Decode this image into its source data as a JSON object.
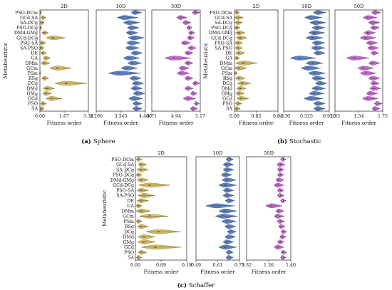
{
  "chart_data": [
    {
      "type": "violin",
      "caption_letter": "(a)",
      "caption_name": "Sphere",
      "ylabel": "Metaheuristic",
      "categories": [
        "PSO-DCm",
        "GCd-SA",
        "SA-DCg",
        "PSO-DCg",
        "DMd-GMg",
        "GCd-DCg",
        "PSO-SA",
        "SA-PSO",
        "DE",
        "GA",
        "DMm",
        "GCm",
        "PSm",
        "RSg",
        "DCg",
        "DMd",
        "GMg",
        "GCd",
        "PSO",
        "SA"
      ],
      "panels": [
        {
          "title": "2D",
          "color": "#d4b857",
          "edge": "#8a7420",
          "xlim": [
            0,
            3.34
          ],
          "ticks": [
            "0.00",
            "1.67",
            "3.34"
          ],
          "xlabel": "Fitness order",
          "medians": [
            0.05,
            0.2,
            0.12,
            0.05,
            0.3,
            0.9,
            0.15,
            0.1,
            0.2,
            0.4,
            0.3,
            1.2,
            0.02,
            0.3,
            1.8,
            0.5,
            0.4,
            0.8,
            0.2,
            0.1
          ],
          "widths": [
            0.06,
            0.35,
            0.3,
            0.1,
            0.45,
            1.3,
            0.4,
            0.3,
            0.4,
            0.5,
            0.6,
            1.5,
            0.06,
            0.5,
            2.2,
            0.8,
            0.6,
            1.1,
            0.4,
            0.3
          ]
        },
        {
          "title": "10D",
          "color": "#4f79c2",
          "edge": "#2a4d8f",
          "xlim": [
            2.29,
            4.4
          ],
          "ticks": [
            "2.290",
            "3.345",
            "4.400"
          ],
          "xlabel": "Fitness order",
          "medians": [
            3.95,
            3.5,
            3.7,
            3.8,
            3.75,
            3.9,
            3.8,
            3.75,
            3.95,
            3.7,
            3.85,
            3.6,
            3.3,
            3.9,
            4.0,
            3.95,
            4.05,
            3.9,
            4.0,
            4.0
          ],
          "widths": [
            0.45,
            0.9,
            0.7,
            0.5,
            0.5,
            0.7,
            0.6,
            0.6,
            0.5,
            0.7,
            0.6,
            0.7,
            1.4,
            0.5,
            0.5,
            0.5,
            0.5,
            0.6,
            0.4,
            0.4
          ]
        },
        {
          "title": "50D",
          "color": "#c45fcf",
          "edge": "#8a2a95",
          "xlim": [
            4.71,
            5.17
          ],
          "ticks": [
            "4.71",
            "4.94",
            "5.17"
          ],
          "xlabel": "Fitness order",
          "medians": [
            5.12,
            4.98,
            5.03,
            5.06,
            5.08,
            5.07,
            5.02,
            5.08,
            5.05,
            4.92,
            5.05,
            5.0,
            4.99,
            5.05,
            5.12,
            5.05,
            5.1,
            5.05,
            5.13,
            5.1
          ],
          "widths": [
            0.08,
            0.1,
            0.08,
            0.05,
            0.06,
            0.07,
            0.09,
            0.08,
            0.08,
            0.25,
            0.08,
            0.1,
            0.12,
            0.08,
            0.07,
            0.08,
            0.06,
            0.12,
            0.05,
            0.07
          ]
        }
      ]
    },
    {
      "type": "violin",
      "caption_letter": "(b)",
      "caption_name": "Stochastic",
      "ylabel": "Metaheuristic",
      "categories": [
        "PSO-DCm",
        "GCd-SA",
        "SA-DCg",
        "PSO-DCg",
        "DMd-GMg",
        "GCd-DCg",
        "PSO-SA",
        "SA-PSO",
        "DE",
        "GA",
        "DMm",
        "GCm",
        "PSm",
        "RSg",
        "DCg",
        "DMd",
        "GMg",
        "GCd",
        "PSO",
        "SA"
      ],
      "panels": [
        {
          "title": "2D",
          "color": "#d4b857",
          "edge": "#8a7420",
          "xlim": [
            0,
            0.04
          ],
          "ticks": [
            "0.00",
            "0.02",
            "0.04"
          ],
          "xlabel": "Fitness order",
          "medians": [
            0.002,
            0.003,
            0.003,
            0.002,
            0.004,
            0.005,
            0.003,
            0.003,
            0.004,
            0.002,
            0.008,
            0.004,
            0.001,
            0.004,
            0.007,
            0.005,
            0.004,
            0.006,
            0.003,
            0.002
          ],
          "widths": [
            0.004,
            0.008,
            0.007,
            0.005,
            0.009,
            0.01,
            0.007,
            0.007,
            0.009,
            0.004,
            0.02,
            0.011,
            0.002,
            0.009,
            0.012,
            0.009,
            0.008,
            0.011,
            0.006,
            0.005
          ]
        },
        {
          "title": "10D",
          "color": "#4f79c2",
          "edge": "#2a4d8f",
          "xlim": [
            0.13,
            0.92
          ],
          "ticks": [
            "0.130",
            "0.525",
            "0.920"
          ],
          "xlabel": "Fitness order",
          "medians": [
            0.72,
            0.6,
            0.68,
            0.7,
            0.66,
            0.62,
            0.7,
            0.69,
            0.72,
            0.4,
            0.62,
            0.55,
            0.66,
            0.7,
            0.75,
            0.7,
            0.66,
            0.6,
            0.72,
            0.72
          ],
          "widths": [
            0.22,
            0.3,
            0.28,
            0.22,
            0.28,
            0.3,
            0.22,
            0.24,
            0.2,
            0.45,
            0.3,
            0.34,
            0.3,
            0.24,
            0.2,
            0.24,
            0.26,
            0.34,
            0.2,
            0.2
          ]
        },
        {
          "title": "50D",
          "color": "#c45fcf",
          "edge": "#8a2a95",
          "xlim": [
            1.33,
            1.75
          ],
          "ticks": [
            "1.33",
            "1.54",
            "1.75"
          ],
          "xlabel": "Fitness order",
          "medians": [
            1.68,
            1.62,
            1.66,
            1.67,
            1.62,
            1.6,
            1.64,
            1.65,
            1.67,
            1.5,
            1.66,
            1.58,
            1.6,
            1.66,
            1.67,
            1.67,
            1.64,
            1.62,
            1.7,
            1.68
          ],
          "widths": [
            0.08,
            0.12,
            0.1,
            0.08,
            0.1,
            0.14,
            0.1,
            0.1,
            0.07,
            0.2,
            0.1,
            0.14,
            0.14,
            0.1,
            0.08,
            0.1,
            0.1,
            0.14,
            0.07,
            0.07
          ]
        }
      ]
    },
    {
      "type": "violin",
      "caption_letter": "(c)",
      "caption_name": "Schaffer",
      "ylabel": "Metaheuristic",
      "categories": [
        "PSO-DCm",
        "GCd-SA",
        "SA-DCg",
        "PSO-DCg",
        "DMd-GMg",
        "GCd-DCg",
        "PSO-SA",
        "SA-PSO",
        "DE",
        "GA",
        "DMm",
        "GCm",
        "PSm",
        "RSg",
        "DCg",
        "DMd",
        "GMg",
        "GCd",
        "PSO",
        "SA"
      ],
      "panels": [
        {
          "title": "2D",
          "color": "#d4b857",
          "edge": "#8a7420",
          "xlim": [
            0,
            0.18
          ],
          "ticks": [
            "0.00",
            "0.09",
            "0.18"
          ],
          "xlabel": "Fitness order",
          "medians": [
            0.01,
            0.02,
            0.02,
            0.01,
            0.02,
            0.05,
            0.02,
            0.03,
            0.02,
            0.01,
            0.02,
            0.05,
            0.01,
            0.02,
            0.08,
            0.03,
            0.03,
            0.07,
            0.02,
            0.01
          ],
          "widths": [
            0.02,
            0.03,
            0.04,
            0.02,
            0.04,
            0.11,
            0.04,
            0.06,
            0.04,
            0.02,
            0.05,
            0.1,
            0.02,
            0.04,
            0.12,
            0.06,
            0.06,
            0.14,
            0.03,
            0.02
          ]
        },
        {
          "title": "10D",
          "color": "#4f79c2",
          "edge": "#2a4d8f",
          "xlim": [
            0.49,
            0.73
          ],
          "ticks": [
            "0.49",
            "0.61",
            "0.73"
          ],
          "xlabel": "Fitness order",
          "medians": [
            0.67,
            0.66,
            0.66,
            0.65,
            0.66,
            0.65,
            0.66,
            0.66,
            0.67,
            0.6,
            0.65,
            0.64,
            0.66,
            0.67,
            0.68,
            0.67,
            0.66,
            0.65,
            0.67,
            0.67
          ],
          "widths": [
            0.04,
            0.06,
            0.06,
            0.06,
            0.08,
            0.1,
            0.06,
            0.06,
            0.05,
            0.16,
            0.1,
            0.12,
            0.08,
            0.06,
            0.05,
            0.06,
            0.06,
            0.1,
            0.04,
            0.04
          ]
        },
        {
          "title": "50D",
          "color": "#c45fcf",
          "edge": "#8a2a95",
          "xlim": [
            1.32,
            1.4
          ],
          "ticks": [
            "1.32",
            "1.36",
            "1.40"
          ],
          "xlabel": "Fitness order",
          "medians": [
            1.385,
            1.38,
            1.38,
            1.38,
            1.378,
            1.376,
            1.38,
            1.38,
            1.385,
            1.365,
            1.378,
            1.376,
            1.38,
            1.382,
            1.386,
            1.384,
            1.38,
            1.376,
            1.386,
            1.385
          ],
          "widths": [
            0.01,
            0.015,
            0.012,
            0.012,
            0.015,
            0.018,
            0.012,
            0.012,
            0.01,
            0.03,
            0.015,
            0.018,
            0.014,
            0.012,
            0.01,
            0.012,
            0.012,
            0.018,
            0.01,
            0.01
          ]
        }
      ]
    }
  ]
}
